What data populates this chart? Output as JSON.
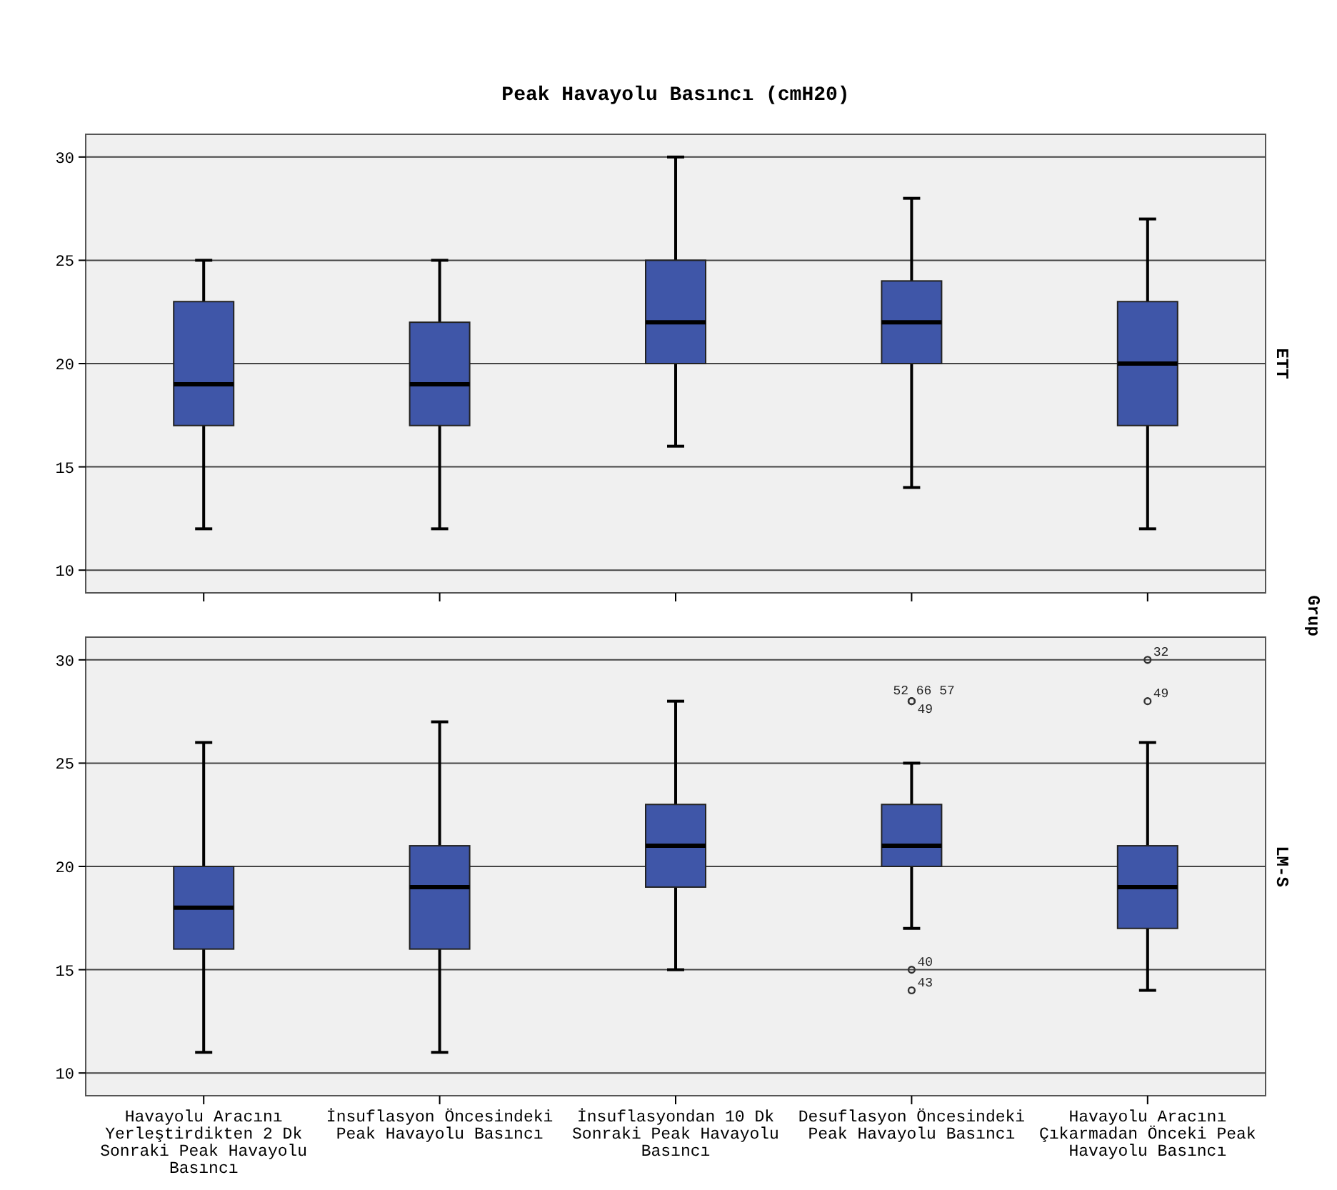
{
  "chart_data": [
    {
      "type": "box",
      "title": "Peak Havayolu Basıncı (cmH20)",
      "color": "#3f56a8",
      "ylim": [
        8.9,
        31.1
      ],
      "yticks": [
        10,
        15,
        20,
        25,
        30
      ],
      "grid": "y",
      "tick_labels": "y",
      "y2label": "ETT",
      "annotations": [
        "Grup"
      ],
      "boxes": [
        {
          "low": 12,
          "q1": 17,
          "median": 19,
          "q3": 23,
          "high": 25
        },
        {
          "low": 12,
          "q1": 17,
          "median": 19,
          "q3": 22,
          "high": 25
        },
        {
          "low": 16,
          "q1": 20,
          "median": 22,
          "q3": 25,
          "high": 30
        },
        {
          "low": 14,
          "q1": 20,
          "median": 22,
          "q3": 24,
          "high": 28
        },
        {
          "low": 12,
          "q1": 17,
          "median": 20,
          "q3": 23,
          "high": 27
        }
      ]
    },
    {
      "type": "box",
      "categories": [
        "Havayolu Aracını Yerleştirdikten 2 Dk Sonraki Peak Havayolu Basıncı",
        "İnsuflasyon Öncesindeki Peak Havayolu Basıncı",
        "İnsuflasyondan 10 Dk Sonraki Peak Havayolu Basıncı",
        "Desuflasyon Öncesindeki Peak Havayolu Basıncı",
        "Havayolu Aracını Çıkarmadan Önceki Peak Havayolu Basıncı"
      ],
      "color": "#3f56a8",
      "ylim": [
        8.9,
        31.1
      ],
      "yticks": [
        10,
        15,
        20,
        25,
        30
      ],
      "grid": "y",
      "y2label": "LM-S",
      "boxes": [
        {
          "low": 11,
          "q1": 16,
          "median": 18,
          "q3": 20,
          "high": 26
        },
        {
          "low": 11,
          "q1": 16,
          "median": 19,
          "q3": 21,
          "high": 27
        },
        {
          "low": 15,
          "q1": 19,
          "median": 21,
          "q3": 23,
          "high": 28
        },
        {
          "low": 17,
          "q1": 20,
          "median": 21,
          "q3": 23,
          "high": 25,
          "outliers": [
            28,
            28,
            15,
            14
          ]
        },
        {
          "low": 14,
          "q1": 17,
          "median": 19,
          "q3": 21,
          "high": 26,
          "outliers": [
            30,
            28
          ]
        }
      ],
      "annotations": [
        "52 66 57",
        "49",
        "40",
        "43",
        "32",
        "49"
      ]
    }
  ]
}
